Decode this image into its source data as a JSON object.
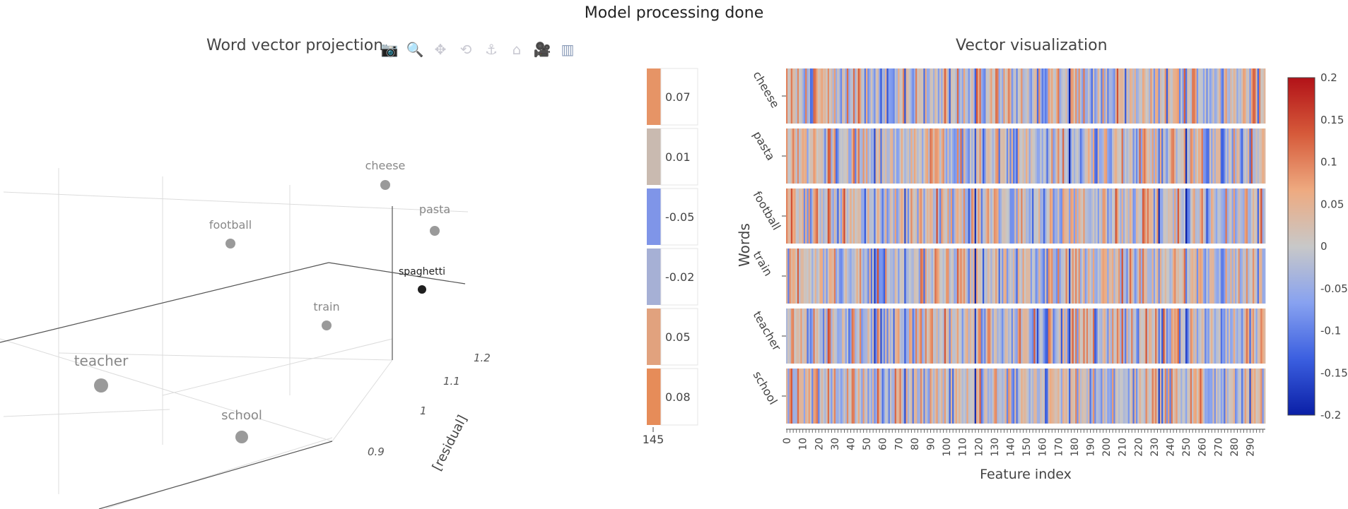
{
  "status": "Model processing done",
  "left_panel": {
    "title": "Word vector projection",
    "modebar": [
      {
        "name": "camera-icon",
        "glyph": "📷"
      },
      {
        "name": "zoom-icon",
        "glyph": "🔍"
      },
      {
        "name": "pan-icon",
        "glyph": "✥"
      },
      {
        "name": "orbit-rotation-icon",
        "glyph": "⟲"
      },
      {
        "name": "turntable-rotation-icon",
        "glyph": "⚓"
      },
      {
        "name": "reset-camera-icon",
        "glyph": "⌂"
      },
      {
        "name": "hover-closest-icon",
        "glyph": "🎥"
      },
      {
        "name": "plotly-logo-icon",
        "glyph": "▥"
      }
    ]
  },
  "right_panel": {
    "title": "Vector visualization"
  },
  "chart_data": [
    {
      "type": "scatter",
      "title": "Word vector projection",
      "axes": {
        "visible_axis_title": "[residual]",
        "residual_ticks": [
          "1.2",
          "1.1",
          "1",
          "0.9"
        ]
      },
      "points": [
        {
          "label": "cheese",
          "color": "#9a9a9a"
        },
        {
          "label": "pasta",
          "color": "#9a9a9a"
        },
        {
          "label": "football",
          "color": "#9a9a9a"
        },
        {
          "label": "spaghetti",
          "color": "#1f1f1f"
        },
        {
          "label": "train",
          "color": "#9a9a9a"
        },
        {
          "label": "teacher",
          "color": "#9a9a9a"
        },
        {
          "label": "school",
          "color": "#9a9a9a"
        }
      ],
      "legend_scale": {
        "segments": [
          {
            "label": "0.07",
            "color": "#e69466"
          },
          {
            "label": "0.01",
            "color": "#c9bab0"
          },
          {
            "label": "-0.05",
            "color": "#7f95e8"
          },
          {
            "label": "-0.02",
            "color": "#a6b0d5"
          },
          {
            "label": "0.05",
            "color": "#e1a27e"
          },
          {
            "label": "0.08",
            "color": "#e68c59"
          }
        ],
        "footer_label": "145"
      }
    },
    {
      "type": "heatmap",
      "title": "Vector visualization",
      "xlabel": "Feature index",
      "ylabel": "Words",
      "rows": [
        "cheese",
        "pasta",
        "football",
        "train",
        "teacher",
        "school"
      ],
      "x_range": [
        0,
        299
      ],
      "x_ticks": [
        0,
        10,
        20,
        30,
        40,
        50,
        60,
        70,
        80,
        90,
        100,
        110,
        120,
        130,
        140,
        150,
        160,
        170,
        180,
        190,
        200,
        210,
        220,
        230,
        240,
        250,
        260,
        270,
        280,
        290
      ],
      "colorbar": {
        "range": [
          -0.2,
          0.2
        ],
        "ticks": [
          "0.2",
          "0.15",
          "0.1",
          "0.05",
          "0",
          "-0.05",
          "-0.1",
          "-0.15",
          "-0.2"
        ],
        "colors": [
          "#0a1fa6",
          "#3b5fe0",
          "#88a2f0",
          "#c8c8c8",
          "#eeaa80",
          "#d65a3a",
          "#b21218"
        ]
      }
    }
  ]
}
